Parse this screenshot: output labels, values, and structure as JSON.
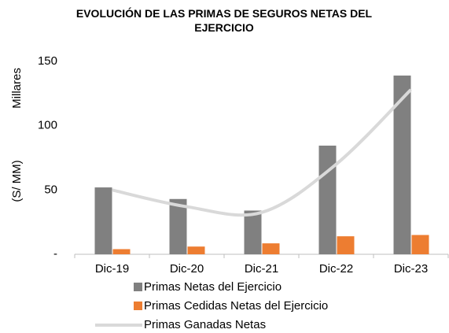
{
  "chart_data": {
    "type": "bar-line",
    "title": "EVOLUCIÓN DE LAS PRIMAS DE SEGUROS NETAS DEL EJERCICIO",
    "y_label_units": "(S/ MM)",
    "y_label_scale": "Millares",
    "categories": [
      "Dic-19",
      "Dic-20",
      "Dic-21",
      "Dic-22",
      "Dic-23"
    ],
    "series": [
      {
        "name": "Primas Netas del Ejercicio",
        "type": "bar",
        "color": "#808080",
        "values": [
          52,
          43,
          34,
          84.5,
          139
        ]
      },
      {
        "name": "Primas Cedidas Netas del Ejercicio",
        "type": "bar",
        "color": "#ed7d31",
        "values": [
          4,
          6,
          8.5,
          14,
          15
        ]
      },
      {
        "name": "Primas Ganadas Netas",
        "type": "line",
        "color": "#d9d9d9",
        "values": [
          50,
          37,
          32.5,
          70,
          128
        ]
      }
    ],
    "ylim": [
      0,
      150
    ],
    "yticks": [
      {
        "value": 0,
        "label": "-"
      },
      50,
      100,
      150
    ],
    "grid": false
  }
}
